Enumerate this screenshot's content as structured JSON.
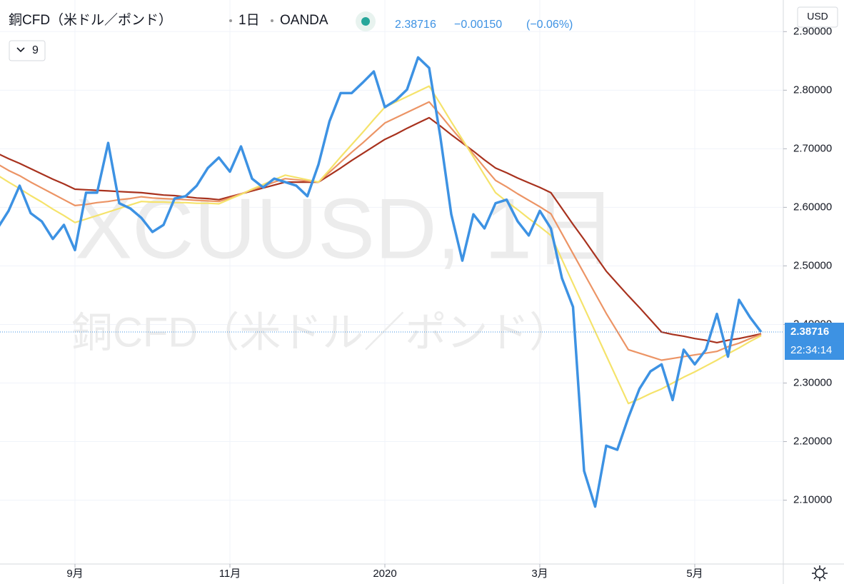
{
  "chart_data": {
    "type": "line",
    "title": "銅CFD（米ドル／ポンド）",
    "interval": "1日",
    "source": "OANDA",
    "indicator_count": "9",
    "last_price": 2.38716,
    "change": "−0.00150",
    "change_pct": "(−0.06%)",
    "countdown": "22:34:14",
    "currency": "USD",
    "watermark_symbol": "XCUUSD, 1日",
    "categories": [
      null,
      null,
      null,
      null,
      null,
      null,
      null,
      "9月",
      null,
      null,
      null,
      null,
      null,
      null,
      null,
      null,
      null,
      null,
      null,
      null,
      null,
      "11月",
      null,
      null,
      null,
      null,
      null,
      null,
      null,
      null,
      null,
      null,
      null,
      null,
      null,
      "2020",
      null,
      null,
      null,
      null,
      null,
      null,
      null,
      null,
      null,
      null,
      null,
      null,
      null,
      "3月",
      null,
      null,
      null,
      null,
      null,
      null,
      null,
      null,
      null,
      null,
      null,
      null,
      null,
      "5月",
      null,
      null,
      null,
      null,
      null,
      null
    ],
    "series": [
      {
        "color": "#a8321e",
        "values": [
          2.692,
          2.683,
          2.675,
          2.666,
          2.657,
          2.648,
          2.64,
          2.631,
          2.63,
          2.629,
          2.628,
          2.627,
          2.626,
          2.625,
          2.623,
          2.621,
          2.62,
          2.618,
          2.616,
          2.615,
          2.613,
          2.618,
          2.623,
          2.628,
          2.633,
          2.638,
          2.643,
          2.643,
          2.643,
          2.643,
          2.655,
          2.667,
          2.68,
          2.692,
          2.704,
          2.716,
          2.725,
          2.735,
          2.744,
          2.753,
          2.739,
          2.724,
          2.71,
          2.696,
          2.681,
          2.667,
          2.659,
          2.65,
          2.642,
          2.634,
          2.625,
          2.598,
          2.571,
          2.545,
          2.518,
          2.491,
          2.47,
          2.449,
          2.429,
          2.408,
          2.387,
          2.383,
          2.38,
          2.376,
          2.373,
          2.369,
          2.373,
          2.376,
          2.38,
          2.384
        ]
      },
      {
        "color": "#ec9465",
        "values": [
          2.674,
          2.663,
          2.654,
          2.643,
          2.633,
          2.623,
          2.613,
          2.603,
          2.605,
          2.608,
          2.61,
          2.613,
          2.615,
          2.618,
          2.616,
          2.615,
          2.614,
          2.613,
          2.612,
          2.611,
          2.61,
          2.616,
          2.623,
          2.63,
          2.636,
          2.643,
          2.649,
          2.647,
          2.645,
          2.643,
          2.66,
          2.677,
          2.694,
          2.71,
          2.727,
          2.744,
          2.753,
          2.762,
          2.771,
          2.78,
          2.758,
          2.735,
          2.713,
          2.691,
          2.668,
          2.646,
          2.635,
          2.623,
          2.612,
          2.601,
          2.589,
          2.555,
          2.521,
          2.487,
          2.453,
          2.419,
          2.388,
          2.357,
          2.351,
          2.345,
          2.339,
          2.342,
          2.345,
          2.348,
          2.351,
          2.354,
          2.362,
          2.368,
          2.376,
          2.383
        ]
      },
      {
        "color": "#f5e36b",
        "values": [
          2.655,
          2.643,
          2.632,
          2.62,
          2.609,
          2.597,
          2.586,
          2.574,
          2.58,
          2.586,
          2.592,
          2.598,
          2.604,
          2.61,
          2.609,
          2.609,
          2.608,
          2.608,
          2.607,
          2.607,
          2.606,
          2.614,
          2.622,
          2.631,
          2.639,
          2.647,
          2.655,
          2.651,
          2.647,
          2.643,
          2.664,
          2.686,
          2.707,
          2.728,
          2.75,
          2.771,
          2.78,
          2.789,
          2.798,
          2.807,
          2.777,
          2.746,
          2.716,
          2.686,
          2.655,
          2.625,
          2.61,
          2.596,
          2.581,
          2.567,
          2.552,
          2.511,
          2.47,
          2.429,
          2.388,
          2.347,
          2.306,
          2.265,
          2.273,
          2.282,
          2.29,
          2.3,
          2.31,
          2.319,
          2.329,
          2.339,
          2.35,
          2.36,
          2.371,
          2.381
        ]
      },
      {
        "color": "#3d92e3",
        "values": [
          2.564,
          2.594,
          2.637,
          2.59,
          2.576,
          2.546,
          2.57,
          2.527,
          2.625,
          2.625,
          2.71,
          2.607,
          2.598,
          2.582,
          2.558,
          2.57,
          2.615,
          2.619,
          2.637,
          2.667,
          2.685,
          2.661,
          2.704,
          2.649,
          2.634,
          2.649,
          2.643,
          2.637,
          2.619,
          2.673,
          2.747,
          2.795,
          2.795,
          2.813,
          2.832,
          2.771,
          2.783,
          2.801,
          2.856,
          2.838,
          2.722,
          2.588,
          2.509,
          2.588,
          2.564,
          2.607,
          2.613,
          2.576,
          2.552,
          2.594,
          2.564,
          2.479,
          2.43,
          2.15,
          2.089,
          2.193,
          2.186,
          2.241,
          2.29,
          2.32,
          2.332,
          2.271,
          2.357,
          2.332,
          2.357,
          2.418,
          2.345,
          2.442,
          2.412,
          2.387
        ]
      }
    ],
    "ylim": [
      1.991,
      2.954
    ],
    "yticks": [
      {
        "value": 2.1,
        "label": "2.10000"
      },
      {
        "value": 2.2,
        "label": "2.20000"
      },
      {
        "value": 2.3,
        "label": "2.30000"
      },
      {
        "value": 2.4,
        "label": "2.40000"
      },
      {
        "value": 2.5,
        "label": "2.50000"
      },
      {
        "value": 2.6,
        "label": "2.60000"
      },
      {
        "value": 2.7,
        "label": "2.70000"
      },
      {
        "value": 2.8,
        "label": "2.80000"
      },
      {
        "value": 2.9,
        "label": "2.90000"
      }
    ],
    "grid": true
  }
}
